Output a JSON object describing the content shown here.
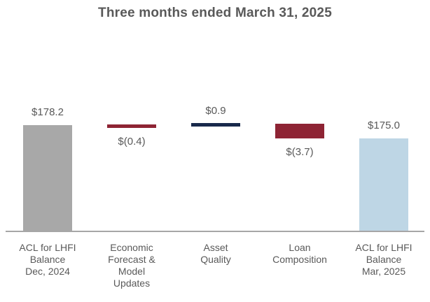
{
  "chart_data": {
    "type": "bar",
    "subtype": "waterfall",
    "title": "Three months ended March 31, 2025",
    "categories": [
      "ACL for LHFI\nBalance\nDec, 2024",
      "Economic\nForecast &\nModel\nUpdates",
      "Asset\nQuality",
      "Loan\nComposition",
      "ACL for LHFI\nBalance\nMar, 2025"
    ],
    "values": [
      178.2,
      -0.4,
      0.9,
      -3.7,
      175.0
    ],
    "bars": [
      {
        "category": "ACL for LHFI\nBalance\nDec, 2024",
        "value": 178.2,
        "value_label": "$178.2",
        "label_position": "above",
        "role": "start_total",
        "color": "#a8a8a8"
      },
      {
        "category": "Economic\nForecast &\nModel\nUpdates",
        "value": -0.4,
        "value_label": "$(0.4)",
        "label_position": "below",
        "role": "decrease",
        "color": "#8e2434"
      },
      {
        "category": "Asset\nQuality",
        "value": 0.9,
        "value_label": "$0.9",
        "label_position": "above",
        "role": "increase",
        "color": "#18294b"
      },
      {
        "category": "Loan\nComposition",
        "value": -3.7,
        "value_label": "$(3.7)",
        "label_position": "below",
        "role": "decrease",
        "color": "#8e2434"
      },
      {
        "category": "ACL for LHFI\nBalance\nMar, 2025",
        "value": 175.0,
        "value_label": "$175.0",
        "label_position": "above",
        "role": "end_total",
        "color": "#bed6e5"
      }
    ],
    "layout": {
      "legend": "none",
      "gridlines": false,
      "y_axis_visible": false,
      "x_axis_line_visible": true,
      "approx_value_axis_min": 151.3
    },
    "colors": {
      "title_text": "#595959",
      "label_text": "#595959",
      "axis_line": "#a6a6a6",
      "background": "#ffffff"
    }
  }
}
